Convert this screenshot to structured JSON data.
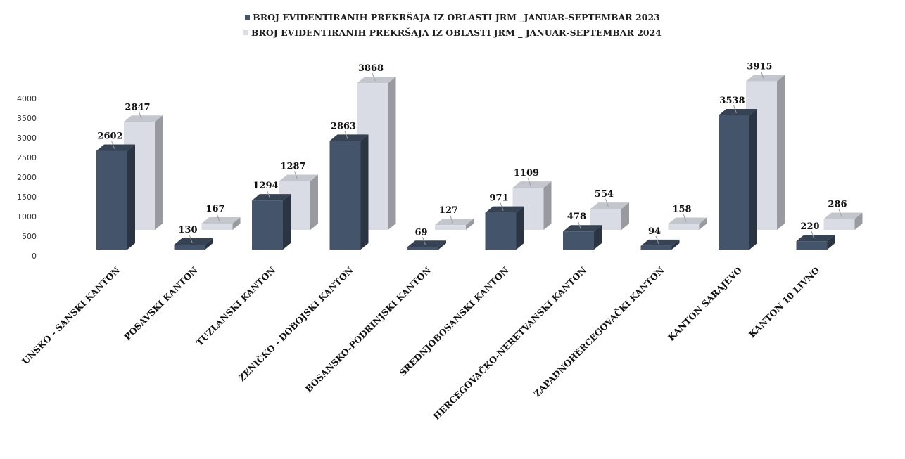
{
  "chart_data": {
    "type": "bar",
    "title": "",
    "xlabel": "",
    "ylabel": "",
    "ylim": [
      0,
      4000
    ],
    "yticks": [
      0,
      500,
      1000,
      1500,
      2000,
      2500,
      3000,
      3500,
      4000
    ],
    "grid": false,
    "legend_position": "top",
    "categories": [
      "UNSKO - SANSKI KANTON",
      "POSAVSKI KANTON",
      "TUZLANSKI KANTON",
      "ZENIČKO - DOBOJSKI KANTON",
      "BOSANSKO-PODRINJSKI KANTON",
      "SREDNJOBOSANSKI KANTON",
      "HERCEGOVAČKO-NERETVANSKI KANTON",
      "ZAPADNOHERCEGOVAČKI KANTON",
      "KANTON SARAJEVO",
      "KANTON 10 LIVNO"
    ],
    "series": [
      {
        "name": "BROJ EVIDENTIRANIH  PREKRŠAJA  IZ OBLASTI  JRM  _JANUAR-SEPTEMBAR 2023",
        "color": "#44546a",
        "values": [
          2602,
          130,
          1294,
          2863,
          69,
          971,
          478,
          94,
          3538,
          220
        ]
      },
      {
        "name": "BROJ EVIDENTIRANIH  PREKRŠAJA  IZ OBLASTI  JRM  _ JANUAR-SEPTEMBAR 2024",
        "color": "#d9dce4",
        "values": [
          2847,
          167,
          1287,
          3868,
          127,
          1109,
          554,
          158,
          3915,
          286
        ]
      }
    ]
  }
}
